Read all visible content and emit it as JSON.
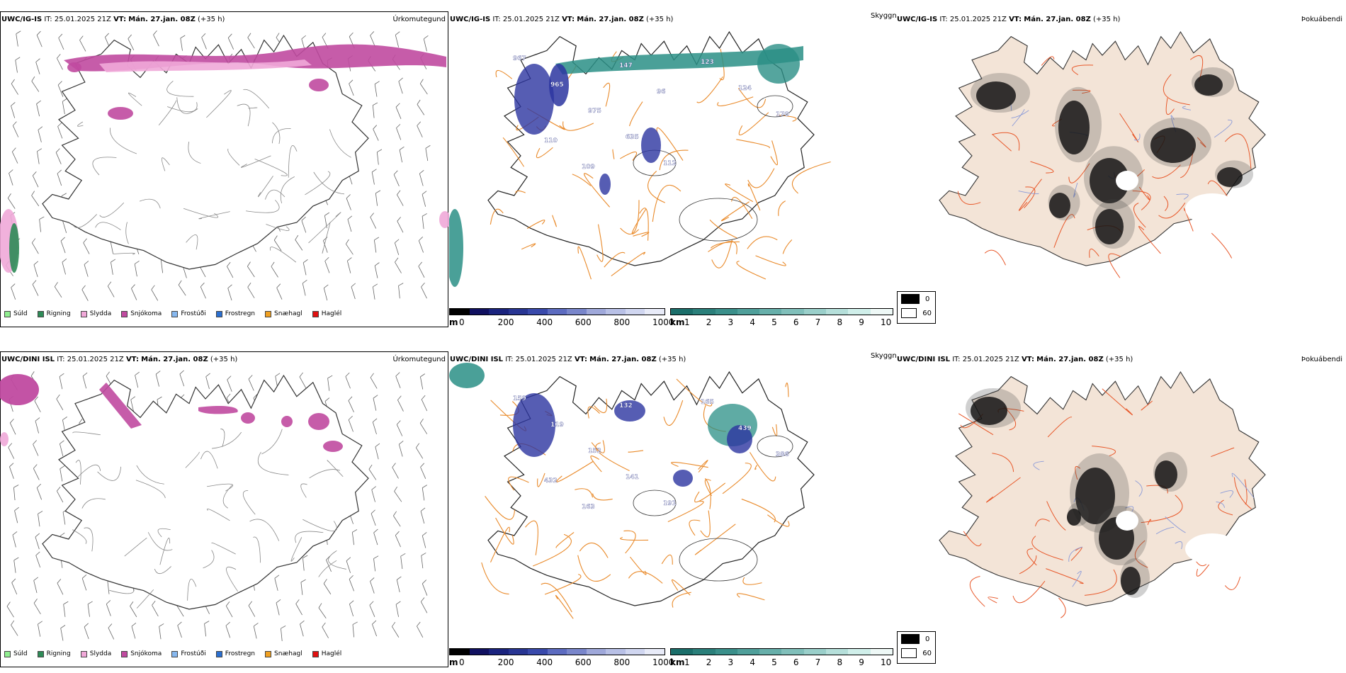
{
  "rows": [
    {
      "model_label": "UWC/IG-IS",
      "it_label": "IT:",
      "it_value": "25.01.2025 21Z",
      "vt_label": "VT:",
      "vt_value": "Mán. 27.jan. 08Z",
      "lead": "(+35 h)",
      "precip_title": "Úrkomutegund",
      "cloud_title": "Skyggni",
      "fog_title": "Þokuábendi",
      "peak_labels": [
        "967",
        "965",
        "975",
        "635",
        "112",
        "123",
        "124",
        "170",
        "110",
        "109",
        "147",
        "96"
      ]
    },
    {
      "model_label": "UWC/DINI ISL",
      "it_label": "IT:",
      "it_value": "25.01.2025 21Z",
      "vt_label": "VT:",
      "vt_value": "Mán. 27.jan. 08Z",
      "lead": "(+35 h)",
      "precip_title": "Úrkomutegund",
      "cloud_title": "Skyggni",
      "fog_title": "Þokuábendi",
      "peak_labels": [
        "159",
        "119",
        "152",
        "141",
        "191",
        "165",
        "439",
        "386",
        "432",
        "163",
        "132"
      ]
    }
  ],
  "precip_legend": [
    {
      "label": "Súld",
      "color": "#90ee90"
    },
    {
      "label": "Rigning",
      "color": "#2e8b57"
    },
    {
      "label": "Slydda",
      "color": "#f0a8d8"
    },
    {
      "label": "Snjókoma",
      "color": "#c04aa0"
    },
    {
      "label": "Frostúði",
      "color": "#87b8ef"
    },
    {
      "label": "Frostregn",
      "color": "#2a6fd0"
    },
    {
      "label": "Snæhagl",
      "color": "#f0a020"
    },
    {
      "label": "Haglél",
      "color": "#e01010"
    }
  ],
  "cloudbase_scale": {
    "unit": "m",
    "ticks": [
      "0",
      "200",
      "400",
      "600",
      "800",
      "1000"
    ],
    "colors": [
      "#000000",
      "#101060",
      "#1a237e",
      "#283593",
      "#3949ab",
      "#5c6bc0",
      "#7986cb",
      "#9fa8da",
      "#b8c0e6",
      "#d0d6f0",
      "#e8ebf8"
    ]
  },
  "visibility_scale": {
    "unit": "km",
    "ticks": [
      "1",
      "2",
      "3",
      "4",
      "5",
      "6",
      "7",
      "8",
      "9",
      "10"
    ],
    "colors": [
      "#1b6e6a",
      "#2a7f7a",
      "#3a8f8a",
      "#4f9f9a",
      "#67afaa",
      "#80bfba",
      "#9acfca",
      "#b5dfda",
      "#d0efea",
      "#eef8f6"
    ]
  },
  "fog_key": [
    {
      "label": "0",
      "color": "#000000"
    },
    {
      "label": "60",
      "color": "#ffffff"
    }
  ],
  "colors": {
    "snow": "#c04aa0",
    "sleet": "#f0a8d8",
    "rain": "#2e8b57",
    "roads": "#e98a2a",
    "fog_land": "#f3e4d7",
    "fog_roads": "#e8582a",
    "fog_rivers": "#8a9ad8",
    "teal": "#2a8f86",
    "cloudbase": "#2c35a0"
  }
}
